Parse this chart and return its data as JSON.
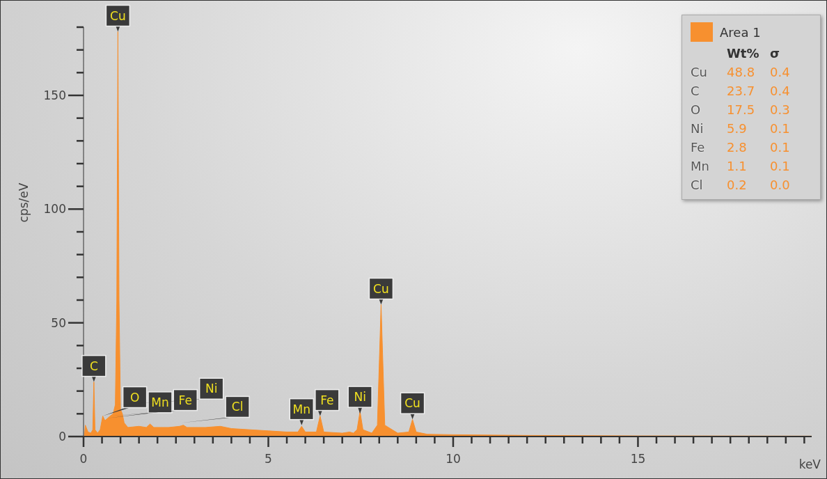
{
  "chart_data": {
    "type": "area",
    "xlabel": "keV",
    "ylabel": "cps/eV",
    "legend": "top right",
    "grid": false,
    "xlim": [
      0,
      19.7
    ],
    "ylim": [
      0,
      180
    ],
    "xticks": [
      0,
      {
        "value": 0.5,
        "label": null
      },
      {
        "value": 1,
        "label": null
      },
      {
        "value": 1.5,
        "label": null
      },
      {
        "value": 2,
        "label": null
      },
      {
        "value": 2.5,
        "label": null
      },
      {
        "value": 3,
        "label": null
      },
      {
        "value": 3.5,
        "label": null
      },
      {
        "value": 4,
        "label": null
      },
      {
        "value": 4.5,
        "label": null
      },
      5,
      {
        "value": 5.5,
        "label": null
      },
      {
        "value": 6,
        "label": null
      },
      {
        "value": 6.5,
        "label": null
      },
      {
        "value": 7,
        "label": null
      },
      {
        "value": 7.5,
        "label": null
      },
      {
        "value": 8,
        "label": null
      },
      {
        "value": 8.5,
        "label": null
      },
      {
        "value": 9,
        "label": null
      },
      {
        "value": 9.5,
        "label": null
      },
      10,
      {
        "value": 10.5,
        "label": null
      },
      {
        "value": 11,
        "label": null
      },
      {
        "value": 11.5,
        "label": null
      },
      {
        "value": 12,
        "label": null
      },
      {
        "value": 12.5,
        "label": null
      },
      {
        "value": 13,
        "label": null
      },
      {
        "value": 13.5,
        "label": null
      },
      {
        "value": 14,
        "label": null
      },
      {
        "value": 14.5,
        "label": null
      },
      15,
      {
        "value": 15.5,
        "label": null
      },
      {
        "value": 16,
        "label": null
      },
      {
        "value": 16.5,
        "label": null
      },
      {
        "value": 17,
        "label": null
      },
      {
        "value": 17.5,
        "label": null
      },
      {
        "value": 18,
        "label": null
      },
      {
        "value": 18.5,
        "label": null
      },
      {
        "value": 19,
        "label": null
      },
      {
        "value": 19.5,
        "label": null
      }
    ],
    "yticks": [
      0,
      {
        "value": 10,
        "label": null
      },
      {
        "value": 20,
        "label": null
      },
      {
        "value": 30,
        "label": null
      },
      {
        "value": 40,
        "label": null
      },
      50,
      {
        "value": 60,
        "label": null
      },
      {
        "value": 70,
        "label": null
      },
      {
        "value": 80,
        "label": null
      },
      {
        "value": 90,
        "label": null
      },
      100,
      {
        "value": 110,
        "label": null
      },
      {
        "value": 120,
        "label": null
      },
      {
        "value": 130,
        "label": null
      },
      {
        "value": 140,
        "label": null
      },
      150,
      {
        "value": 160,
        "label": null
      },
      {
        "value": 170,
        "label": null
      },
      {
        "value": 180,
        "label": null
      }
    ],
    "series": [
      {
        "name": "Area 1",
        "color": "#f7902f",
        "x": [
          0.02,
          0.05,
          0.12,
          0.2,
          0.25,
          0.28,
          0.31,
          0.38,
          0.45,
          0.52,
          0.58,
          0.65,
          0.72,
          0.8,
          0.86,
          0.9,
          0.93,
          0.96,
          1.0,
          1.05,
          1.1,
          1.2,
          1.5,
          1.7,
          1.8,
          1.9,
          2.3,
          2.6,
          2.7,
          2.8,
          3.3,
          3.7,
          4.0,
          4.5,
          5.0,
          5.5,
          5.8,
          5.9,
          6.0,
          6.3,
          6.4,
          6.5,
          7.0,
          7.2,
          7.3,
          7.4,
          7.48,
          7.56,
          7.8,
          7.95,
          8.05,
          8.15,
          8.5,
          8.8,
          8.9,
          9.0,
          9.3,
          10,
          12,
          15,
          19.7
        ],
        "values": [
          0,
          5,
          2,
          1.5,
          3,
          24,
          3,
          1.5,
          3,
          9,
          7,
          8,
          9,
          10,
          14,
          60,
          178,
          60,
          12,
          10,
          6,
          4,
          4.5,
          4,
          5.5,
          4,
          4,
          4.5,
          5,
          4,
          4,
          4.5,
          3.5,
          3,
          2.5,
          2,
          2,
          4.5,
          2,
          2,
          9,
          2,
          1.5,
          2,
          1.5,
          3,
          11,
          3,
          1.5,
          5,
          58,
          5,
          1.5,
          2,
          7.5,
          2,
          1,
          0.8,
          0.5,
          0.3,
          0.2
        ]
      }
    ],
    "annotations": [
      {
        "text": "C",
        "x": 0.28,
        "y": 24
      },
      {
        "text": "O",
        "x": 0.52,
        "y": 9
      },
      {
        "text": "Mn",
        "x": 0.64,
        "y": 8
      },
      {
        "text": "Fe",
        "x": 0.72,
        "y": 9
      },
      {
        "text": "Ni",
        "x": 0.86,
        "y": 14
      },
      {
        "text": "Cl",
        "x": 2.62,
        "y": 6
      },
      {
        "text": "Cu",
        "x": 0.93,
        "y": 178
      },
      {
        "text": "Mn",
        "x": 5.9,
        "y": 5
      },
      {
        "text": "Fe",
        "x": 6.4,
        "y": 9
      },
      {
        "text": "Ni",
        "x": 7.48,
        "y": 10
      },
      {
        "text": "Cu",
        "x": 8.05,
        "y": 58
      },
      {
        "text": "Cu",
        "x": 8.9,
        "y": 7.6
      },
      "Wt%",
      "σ",
      "Cu",
      "48.8",
      "0.4",
      "C",
      "23.7",
      "0.4",
      "O",
      "17.5",
      "0.3",
      "Ni",
      "5.9",
      "0.1",
      "Fe",
      "2.8",
      "0.1",
      "Mn",
      "1.1",
      "0.1",
      "Cl",
      "0.2",
      "0.0"
    ]
  }
}
